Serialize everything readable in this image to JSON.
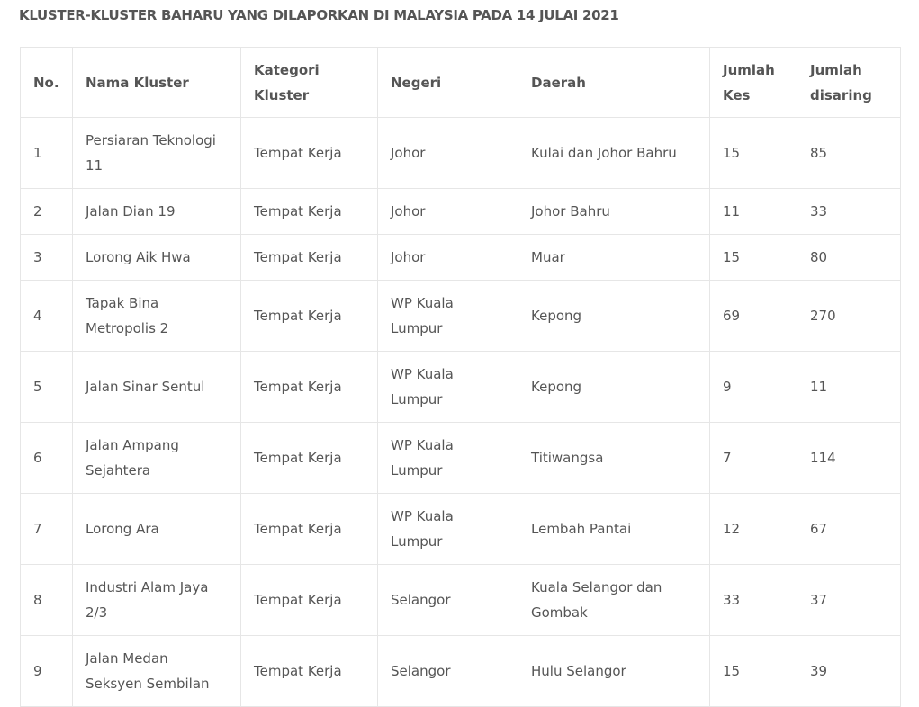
{
  "title": "KLUSTER-KLUSTER BAHARU YANG DILAPORKAN DI MALAYSIA PADA 14 JULAI 2021",
  "headers": [
    "No.",
    "Nama Kluster",
    "Kategori Kluster",
    "Negeri",
    "Daerah",
    "Jumlah Kes",
    "Jumlah disaring"
  ],
  "rows": [
    [
      "1",
      "Persiaran Teknologi 11",
      "Tempat Kerja",
      "Johor",
      "Kulai dan Johor Bahru",
      "15",
      "85"
    ],
    [
      "2",
      "Jalan Dian 19",
      "Tempat Kerja",
      "Johor",
      "Johor Bahru",
      "11",
      "33"
    ],
    [
      "3",
      "Lorong Aik Hwa",
      "Tempat Kerja",
      "Johor",
      "Muar",
      "15",
      "80"
    ],
    [
      "4",
      "Tapak Bina Metropolis 2",
      "Tempat Kerja",
      "WP Kuala Lumpur",
      "Kepong",
      "69",
      "270"
    ],
    [
      "5",
      "Jalan Sinar Sentul",
      "Tempat Kerja",
      "WP Kuala Lumpur",
      "Kepong",
      "9",
      "11"
    ],
    [
      "6",
      "Jalan Ampang Sejahtera",
      "Tempat Kerja",
      "WP Kuala Lumpur",
      "Titiwangsa",
      "7",
      "114"
    ],
    [
      "7",
      "Lorong Ara",
      "Tempat Kerja",
      "WP Kuala Lumpur",
      "Lembah Pantai",
      "12",
      "67"
    ],
    [
      "8",
      "Industri Alam Jaya 2/3",
      "Tempat Kerja",
      "Selangor",
      "Kuala Selangor dan Gombak",
      "33",
      "37"
    ],
    [
      "9",
      "Jalan Medan Seksyen Sembilan",
      "Tempat Kerja",
      "Selangor",
      "Hulu Selangor",
      "15",
      "39"
    ]
  ]
}
